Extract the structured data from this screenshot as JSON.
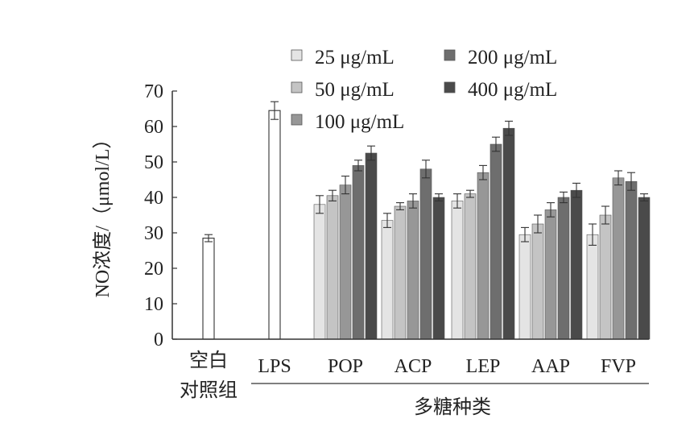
{
  "chart_data": {
    "type": "bar",
    "ylabel": "NO浓度/（μmol/L）",
    "ylim": [
      0,
      70
    ],
    "yticks": [
      0,
      10,
      20,
      30,
      40,
      50,
      60,
      70
    ],
    "group_label": "多糖种类",
    "categories": [
      "空白对照组",
      "LPS",
      "POP",
      "ACP",
      "LEP",
      "AAP",
      "FVP"
    ],
    "controls": [
      {
        "category": "空白对照组",
        "value": 28.5,
        "error": 1.0
      },
      {
        "category": "LPS",
        "value": 64.5,
        "error": 2.5
      }
    ],
    "series": [
      {
        "name": "25 μg/mL",
        "color": "#e4e4e4",
        "values": [
          null,
          null,
          38.0,
          33.5,
          39.0,
          29.5,
          29.5
        ],
        "errors": [
          null,
          null,
          2.5,
          2.0,
          2.0,
          2.0,
          3.0
        ]
      },
      {
        "name": "50 μg/mL",
        "color": "#c4c4c4",
        "values": [
          null,
          null,
          40.5,
          37.5,
          41.0,
          32.5,
          35.0
        ],
        "errors": [
          null,
          null,
          1.5,
          1.0,
          1.0,
          2.5,
          2.5
        ]
      },
      {
        "name": "100 μg/mL",
        "color": "#979797",
        "values": [
          null,
          null,
          43.5,
          39.0,
          47.0,
          36.5,
          45.5
        ],
        "errors": [
          null,
          null,
          2.5,
          2.0,
          2.0,
          2.0,
          2.0
        ]
      },
      {
        "name": "200 μg/mL",
        "color": "#6e6e6e",
        "values": [
          null,
          null,
          49.0,
          48.0,
          55.0,
          40.0,
          44.5
        ],
        "errors": [
          null,
          null,
          1.5,
          2.5,
          2.0,
          1.5,
          2.5
        ]
      },
      {
        "name": "400 μg/mL",
        "color": "#4a4a4a",
        "values": [
          null,
          null,
          52.5,
          40.0,
          59.5,
          42.0,
          40.0
        ],
        "errors": [
          null,
          null,
          2.0,
          1.0,
          2.0,
          2.0,
          1.0
        ]
      }
    ],
    "legend_position": "top-right",
    "grid": false
  }
}
